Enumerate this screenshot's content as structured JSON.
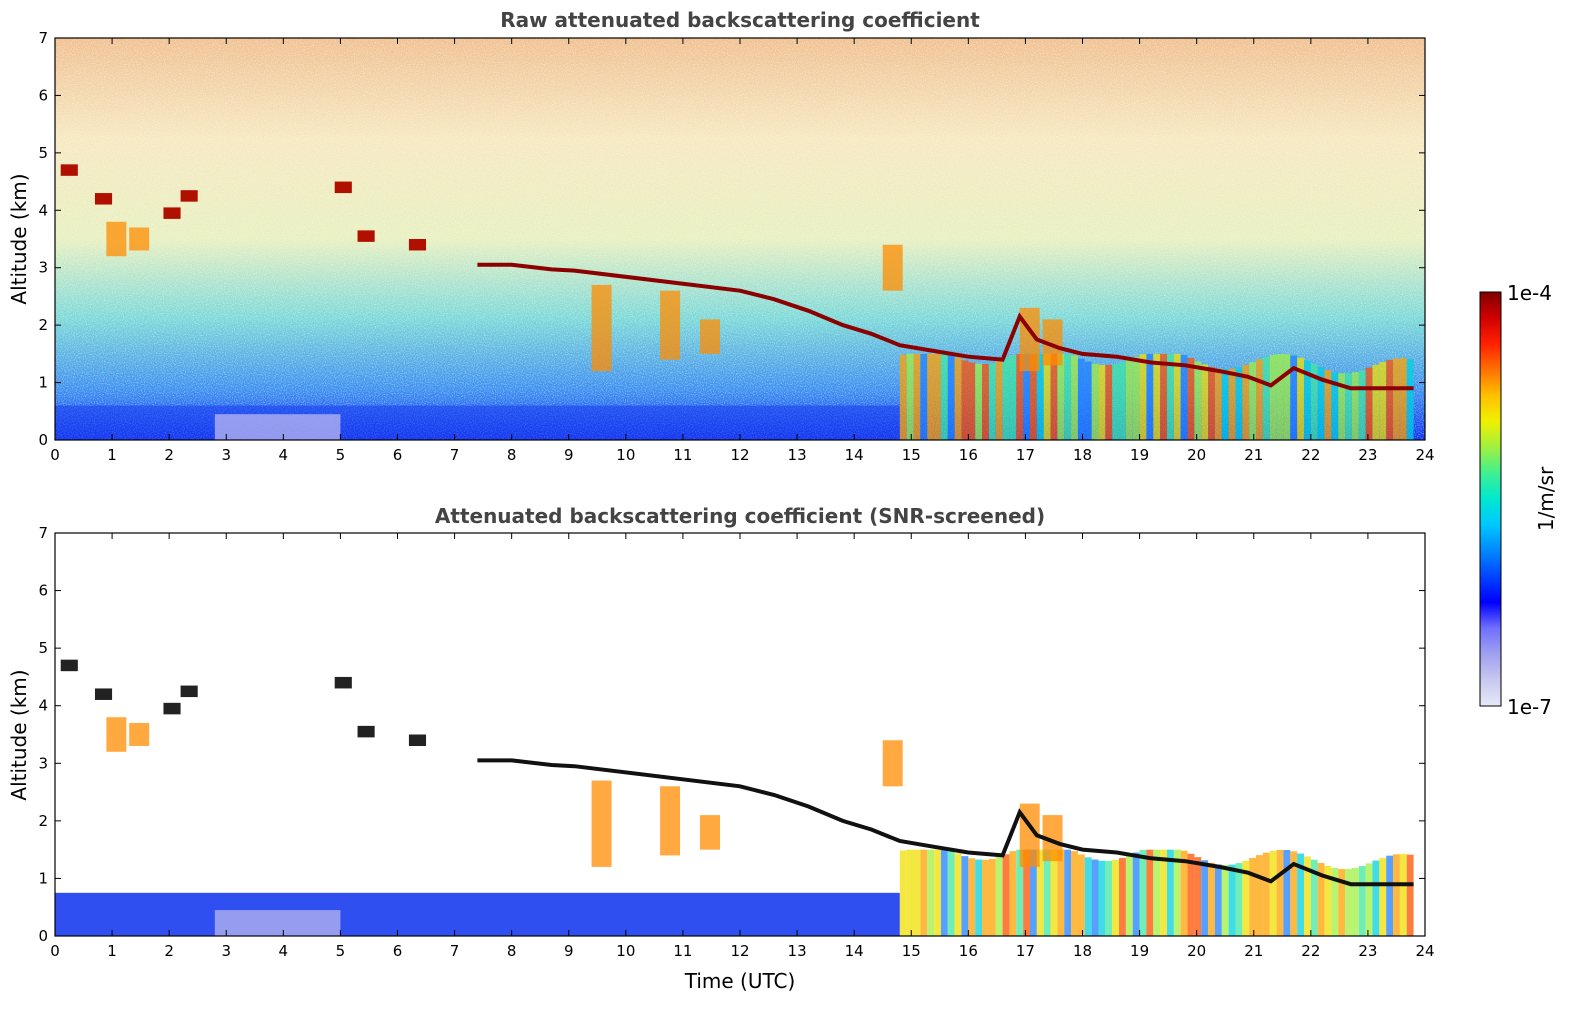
{
  "chart_data": [
    {
      "type": "heatmap",
      "title": "Raw attenuated backscattering coefficient",
      "xlabel": "",
      "ylabel": "Altitude (km)",
      "xlim": [
        0,
        24
      ],
      "ylim": [
        0,
        7
      ],
      "xticks": [
        "0",
        "1",
        "2",
        "3",
        "4",
        "5",
        "6",
        "7",
        "8",
        "9",
        "10",
        "11",
        "12",
        "13",
        "14",
        "15",
        "16",
        "17",
        "18",
        "19",
        "20",
        "21",
        "22",
        "23",
        "24"
      ],
      "yticks": [
        "0",
        "1",
        "2",
        "3",
        "4",
        "5",
        "6",
        "7"
      ],
      "cloud_layer": [
        [
          7.4,
          3.05
        ],
        [
          8.0,
          3.05
        ],
        [
          8.7,
          2.97
        ],
        [
          9.1,
          2.95
        ],
        [
          12.0,
          2.6
        ],
        [
          12.6,
          2.45
        ],
        [
          13.2,
          2.25
        ],
        [
          13.8,
          2.0
        ],
        [
          14.3,
          1.85
        ],
        [
          14.8,
          1.65
        ],
        [
          15.4,
          1.55
        ],
        [
          16.0,
          1.45
        ],
        [
          16.6,
          1.4
        ],
        [
          16.9,
          2.15
        ],
        [
          17.2,
          1.75
        ],
        [
          17.6,
          1.6
        ],
        [
          18.0,
          1.5
        ],
        [
          18.6,
          1.45
        ],
        [
          19.2,
          1.35
        ],
        [
          19.8,
          1.3
        ],
        [
          20.4,
          1.2
        ],
        [
          20.9,
          1.1
        ],
        [
          21.3,
          0.95
        ],
        [
          21.7,
          1.25
        ],
        [
          22.2,
          1.05
        ],
        [
          22.7,
          0.9
        ],
        [
          23.2,
          0.9
        ],
        [
          23.8,
          0.9
        ]
      ]
    },
    {
      "type": "heatmap",
      "title": "Attenuated backscattering coefficient (SNR-screened)",
      "xlabel": "Time (UTC)",
      "ylabel": "Altitude (km)",
      "xlim": [
        0,
        24
      ],
      "ylim": [
        0,
        7
      ],
      "xticks": [
        "0",
        "1",
        "2",
        "3",
        "4",
        "5",
        "6",
        "7",
        "8",
        "9",
        "10",
        "11",
        "12",
        "13",
        "14",
        "15",
        "16",
        "17",
        "18",
        "19",
        "20",
        "21",
        "22",
        "23",
        "24"
      ],
      "yticks": [
        "0",
        "1",
        "2",
        "3",
        "4",
        "5",
        "6",
        "7"
      ],
      "cloud_layer": [
        [
          7.4,
          3.05
        ],
        [
          8.0,
          3.05
        ],
        [
          8.7,
          2.97
        ],
        [
          9.1,
          2.95
        ],
        [
          12.0,
          2.6
        ],
        [
          12.6,
          2.45
        ],
        [
          13.2,
          2.25
        ],
        [
          13.8,
          2.0
        ],
        [
          14.3,
          1.85
        ],
        [
          14.8,
          1.65
        ],
        [
          15.4,
          1.55
        ],
        [
          16.0,
          1.45
        ],
        [
          16.6,
          1.4
        ],
        [
          16.9,
          2.15
        ],
        [
          17.2,
          1.75
        ],
        [
          17.6,
          1.6
        ],
        [
          18.0,
          1.5
        ],
        [
          18.6,
          1.45
        ],
        [
          19.2,
          1.35
        ],
        [
          19.8,
          1.3
        ],
        [
          20.4,
          1.2
        ],
        [
          20.9,
          1.1
        ],
        [
          21.3,
          0.95
        ],
        [
          21.7,
          1.25
        ],
        [
          22.2,
          1.05
        ],
        [
          22.7,
          0.9
        ],
        [
          23.2,
          0.9
        ],
        [
          23.8,
          0.9
        ]
      ]
    }
  ],
  "colorbar": {
    "label": "1/m/sr",
    "max_label": "1e-4",
    "min_label": "1e-7",
    "colors": [
      "#e8e8f8",
      "#c8c8f0",
      "#a0a0f0",
      "#7070ff",
      "#0000ff",
      "#0044ff",
      "#0088ff",
      "#00c8ff",
      "#00e8d0",
      "#40f090",
      "#a0f040",
      "#f0f000",
      "#ffc000",
      "#ff7000",
      "#ff2000",
      "#d00000",
      "#800000"
    ]
  }
}
